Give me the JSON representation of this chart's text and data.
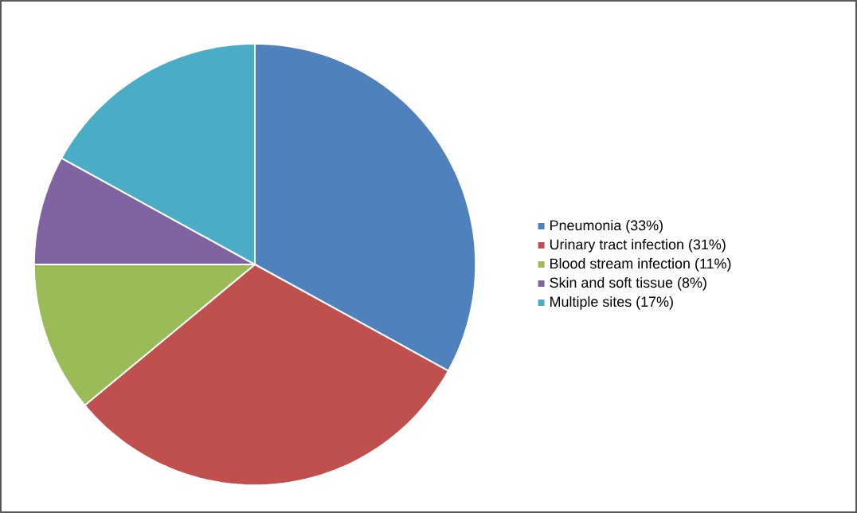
{
  "chart_data": {
    "type": "pie",
    "categories": [
      "Pneumonia (33%)",
      "Urinary tract infection (31%)",
      "Blood stream infection (11%)",
      "Skin and soft tissue (8%)",
      "Multiple sites (17%)"
    ],
    "values": [
      33,
      31,
      11,
      8,
      17
    ],
    "colors": [
      "#4f81bd",
      "#c0504d",
      "#9bbb59",
      "#8064a2",
      "#4bacc6"
    ],
    "legend": "right"
  }
}
